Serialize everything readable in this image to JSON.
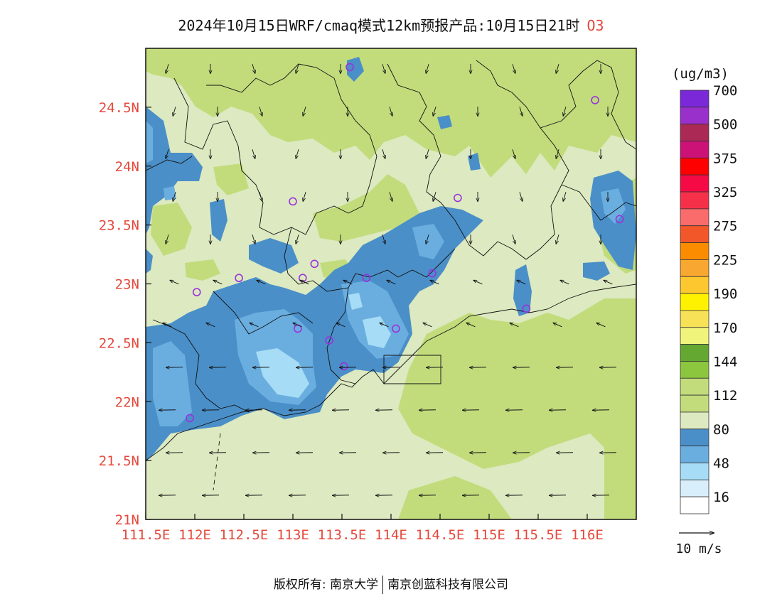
{
  "title": {
    "text": "2024年10月15日WRF/cmaq模式12km预报产品:10月15日21时",
    "pollutant": "O3"
  },
  "map": {
    "lon_range": [
      111.5,
      116.5
    ],
    "lat_range": [
      21.0,
      25.0
    ],
    "x_ticks": [
      {
        "lon": 111.5,
        "label": "111.5E"
      },
      {
        "lon": 112.0,
        "label": "112E"
      },
      {
        "lon": 112.5,
        "label": "112.5E"
      },
      {
        "lon": 113.0,
        "label": "113E"
      },
      {
        "lon": 113.5,
        "label": "113.5E"
      },
      {
        "lon": 114.0,
        "label": "114E"
      },
      {
        "lon": 114.5,
        "label": "114.5E"
      },
      {
        "lon": 115.0,
        "label": "115E"
      },
      {
        "lon": 115.5,
        "label": "115.5E"
      },
      {
        "lon": 116.0,
        "label": "116E"
      }
    ],
    "y_ticks": [
      {
        "lat": 21.0,
        "label": "21N"
      },
      {
        "lat": 21.5,
        "label": "21.5N"
      },
      {
        "lat": 22.0,
        "label": "22N"
      },
      {
        "lat": 22.5,
        "label": "22.5N"
      },
      {
        "lat": 23.0,
        "label": "23N"
      },
      {
        "lat": 23.5,
        "label": "23.5N"
      },
      {
        "lat": 24.0,
        "label": "24N"
      },
      {
        "lat": 24.5,
        "label": "24.5N"
      }
    ],
    "colors": {
      "background_80_112": "#dde9c0",
      "light_green_112_144": "#c2dc7c",
      "blue_64_80": "#4a8fc8",
      "blue_48_64": "#6aaee0",
      "blue_32_48": "#a6dcf5",
      "boundary": "#111111",
      "station": "#9933dd",
      "tick_label": "#e5483b"
    },
    "stations": [
      {
        "lon": 113.58,
        "lat": 24.84
      },
      {
        "lon": 116.08,
        "lat": 24.56
      },
      {
        "lon": 113.0,
        "lat": 23.7
      },
      {
        "lon": 114.68,
        "lat": 23.73
      },
      {
        "lon": 116.33,
        "lat": 23.55
      },
      {
        "lon": 113.22,
        "lat": 23.17
      },
      {
        "lon": 113.1,
        "lat": 23.05
      },
      {
        "lon": 112.45,
        "lat": 23.05
      },
      {
        "lon": 113.75,
        "lat": 23.05
      },
      {
        "lon": 114.42,
        "lat": 23.09
      },
      {
        "lon": 112.02,
        "lat": 22.93
      },
      {
        "lon": 115.38,
        "lat": 22.79
      },
      {
        "lon": 113.05,
        "lat": 22.62
      },
      {
        "lon": 114.05,
        "lat": 22.62
      },
      {
        "lon": 113.37,
        "lat": 22.52
      },
      {
        "lon": 113.52,
        "lat": 22.3
      },
      {
        "lon": 111.95,
        "lat": 21.86
      }
    ]
  },
  "colorbar": {
    "unit": "(ug/m3)",
    "bins": [
      {
        "color": "#ffffff"
      },
      {
        "color": "#d8eefa"
      },
      {
        "color": "#a6dcf5"
      },
      {
        "color": "#6aaee0"
      },
      {
        "color": "#4a8fc8"
      },
      {
        "color": "#dde9c0"
      },
      {
        "color": "#c2dc7c"
      },
      {
        "color": "#c2dc7c"
      },
      {
        "color": "#8cc63f"
      },
      {
        "color": "#64a832"
      },
      {
        "color": "#f0f47a"
      },
      {
        "color": "#f7e156"
      },
      {
        "color": "#fff200"
      },
      {
        "color": "#fdc82f"
      },
      {
        "color": "#f8a830"
      },
      {
        "color": "#fb8c00"
      },
      {
        "color": "#f2572a"
      },
      {
        "color": "#fa6b6b"
      },
      {
        "color": "#f7304a"
      },
      {
        "color": "#f50a45"
      },
      {
        "color": "#ff0000"
      },
      {
        "color": "#cc1177"
      },
      {
        "color": "#aa2a55"
      },
      {
        "color": "#9930cc"
      },
      {
        "color": "#7a28d8"
      }
    ],
    "labels": [
      "16",
      "48",
      "80",
      "112",
      "144",
      "170",
      "190",
      "225",
      "275",
      "325",
      "375",
      "500",
      "700"
    ]
  },
  "wind_legend": {
    "label": "10 m/s"
  },
  "footer": {
    "left": "版权所有: 南京大学",
    "right": "南京创蓝科技有限公司"
  }
}
